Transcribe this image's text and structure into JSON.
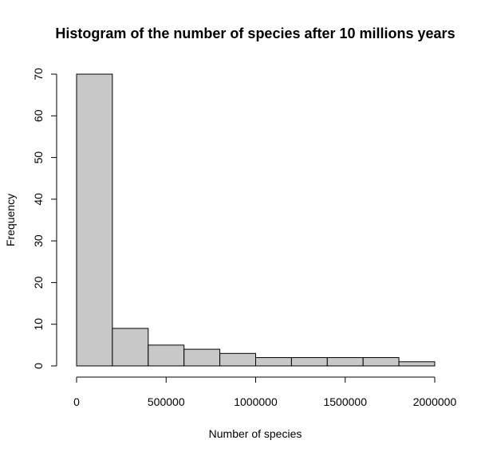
{
  "chart_data": {
    "type": "bar",
    "title": "Histogram of the number of species after 10 millions years",
    "xlabel": "Number of species",
    "ylabel": "Frequency",
    "bins": [
      {
        "start": 0,
        "end": 200000,
        "count": 70
      },
      {
        "start": 200000,
        "end": 400000,
        "count": 9
      },
      {
        "start": 400000,
        "end": 600000,
        "count": 5
      },
      {
        "start": 600000,
        "end": 800000,
        "count": 4
      },
      {
        "start": 800000,
        "end": 1000000,
        "count": 3
      },
      {
        "start": 1000000,
        "end": 1200000,
        "count": 2
      },
      {
        "start": 1200000,
        "end": 1400000,
        "count": 2
      },
      {
        "start": 1400000,
        "end": 1600000,
        "count": 2
      },
      {
        "start": 1600000,
        "end": 1800000,
        "count": 2
      },
      {
        "start": 1800000,
        "end": 2000000,
        "count": 1
      }
    ],
    "xlim": [
      0,
      2000000
    ],
    "ylim": [
      0,
      70
    ],
    "x_ticks": [
      {
        "value": 0,
        "label": "0"
      },
      {
        "value": 500000,
        "label": "500000"
      },
      {
        "value": 1000000,
        "label": "1000000"
      },
      {
        "value": 1500000,
        "label": "1500000"
      },
      {
        "value": 2000000,
        "label": "2000000"
      }
    ],
    "y_ticks": [
      {
        "value": 0,
        "label": "0"
      },
      {
        "value": 10,
        "label": "10"
      },
      {
        "value": 20,
        "label": "20"
      },
      {
        "value": 30,
        "label": "30"
      },
      {
        "value": 40,
        "label": "40"
      },
      {
        "value": 50,
        "label": "50"
      },
      {
        "value": 60,
        "label": "60"
      },
      {
        "value": 70,
        "label": "70"
      }
    ],
    "grid": false,
    "bar_fill": "#c8c8c8",
    "bar_stroke": "#000000"
  }
}
